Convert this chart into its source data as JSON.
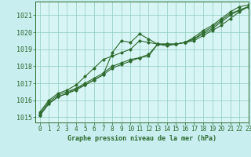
{
  "background_color": "#c8eef0",
  "plot_bg_color": "#d8f5f5",
  "grid_color": "#90ccbb",
  "line_color": "#2d6a2d",
  "title": "Graphe pression niveau de la mer (hPa)",
  "xlim": [
    -0.5,
    23
  ],
  "ylim": [
    1014.7,
    1021.8
  ],
  "yticks": [
    1015,
    1016,
    1017,
    1018,
    1019,
    1020,
    1021
  ],
  "xticks": [
    0,
    1,
    2,
    3,
    4,
    5,
    6,
    7,
    8,
    9,
    10,
    11,
    12,
    13,
    14,
    15,
    16,
    17,
    18,
    19,
    20,
    21,
    22,
    23
  ],
  "series": [
    [
      1015.2,
      1015.9,
      1016.3,
      1016.5,
      1016.7,
      1016.9,
      1017.2,
      1017.5,
      1018.8,
      1019.5,
      1019.4,
      1019.9,
      1019.6,
      1019.3,
      1019.2,
      1019.3,
      1019.4,
      1019.7,
      1020.1,
      1020.4,
      1020.8,
      1021.2,
      1021.5,
      1021.6
    ],
    [
      1015.1,
      1015.8,
      1016.2,
      1016.4,
      1016.6,
      1016.9,
      1017.2,
      1017.5,
      1017.9,
      1018.1,
      1018.3,
      1018.5,
      1018.6,
      1019.3,
      1019.3,
      1019.3,
      1019.4,
      1019.6,
      1020.0,
      1020.3,
      1020.7,
      1021.1,
      1021.3,
      1021.5
    ],
    [
      1015.1,
      1015.8,
      1016.2,
      1016.4,
      1016.7,
      1017.0,
      1017.3,
      1017.6,
      1018.0,
      1018.2,
      1018.4,
      1018.5,
      1018.7,
      1019.3,
      1019.3,
      1019.3,
      1019.4,
      1019.6,
      1019.9,
      1020.2,
      1020.6,
      1021.0,
      1021.3,
      1021.5
    ],
    [
      1015.3,
      1016.0,
      1016.4,
      1016.6,
      1016.9,
      1017.4,
      1017.9,
      1018.4,
      1018.6,
      1018.8,
      1019.0,
      1019.5,
      1019.4,
      1019.3,
      1019.3,
      1019.3,
      1019.4,
      1019.5,
      1019.8,
      1020.1,
      1020.4,
      1020.8,
      1021.2,
      1021.5
    ]
  ],
  "marker": "o",
  "markersize": 2.5,
  "linewidth": 0.8,
  "title_fontsize": 6.0,
  "tick_fontsize": 5.5
}
